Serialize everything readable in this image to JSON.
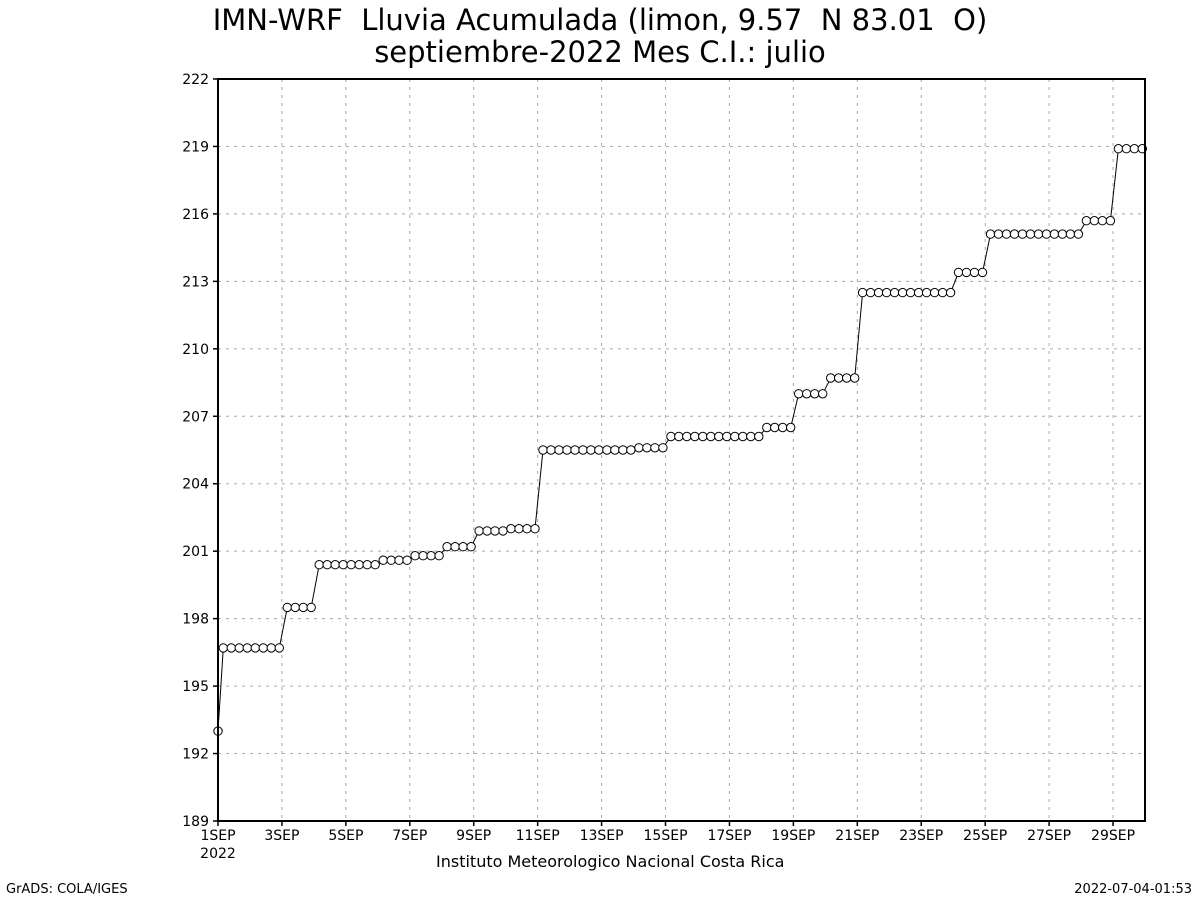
{
  "title_line1": "IMN-WRF  Lluvia Acumulada (limon, 9.57  N 83.01  O)",
  "title_line2": "septiembre-2022 Mes C.I.: julio",
  "footer": {
    "credit": "Instituto Meteorologico Nacional Costa Rica",
    "grads": "GrADS: COLA/IGES",
    "timestamp": "2022-07-04-01:53"
  },
  "chart_data": {
    "type": "line",
    "title": "IMN-WRF  Lluvia Acumulada (limon, 9.57  N 83.01  O)",
    "subtitle": "septiembre-2022 Mes C.I.: julio",
    "xlabel": "",
    "ylabel": "",
    "x_range_days": [
      1,
      30
    ],
    "x_year_label": "2022",
    "ylim": [
      189,
      222
    ],
    "yticks": [
      189,
      192,
      195,
      198,
      201,
      204,
      207,
      210,
      213,
      216,
      219,
      222
    ],
    "xticks": [
      {
        "day": 1,
        "label": "1SEP"
      },
      {
        "day": 3,
        "label": "3SEP"
      },
      {
        "day": 5,
        "label": "5SEP"
      },
      {
        "day": 7,
        "label": "7SEP"
      },
      {
        "day": 9,
        "label": "9SEP"
      },
      {
        "day": 11,
        "label": "11SEP"
      },
      {
        "day": 13,
        "label": "13SEP"
      },
      {
        "day": 15,
        "label": "15SEP"
      },
      {
        "day": 17,
        "label": "17SEP"
      },
      {
        "day": 19,
        "label": "19SEP"
      },
      {
        "day": 21,
        "label": "21SEP"
      },
      {
        "day": 23,
        "label": "23SEP"
      },
      {
        "day": 25,
        "label": "25SEP"
      },
      {
        "day": 27,
        "label": "27SEP"
      },
      {
        "day": 29,
        "label": "29SEP"
      }
    ],
    "grid": true,
    "marker": "open-circle",
    "line_color": "#000000",
    "series": [
      {
        "x": [
          1.0,
          1.167,
          1.417,
          1.667,
          1.917,
          2.167,
          2.417,
          2.667,
          2.917,
          3.167,
          3.417,
          3.667,
          3.917,
          4.167,
          4.417,
          4.667,
          4.917,
          5.167,
          5.417,
          5.667,
          5.917,
          6.167,
          6.417,
          6.667,
          6.917,
          7.167,
          7.417,
          7.667,
          7.917,
          8.167,
          8.417,
          8.667,
          8.917,
          9.167,
          9.417,
          9.667,
          9.917,
          10.167,
          10.417,
          10.667,
          10.917,
          11.167,
          11.417,
          11.667,
          11.917,
          12.167,
          12.417,
          12.667,
          12.917,
          13.167,
          13.417,
          13.667,
          13.917,
          14.167,
          14.417,
          14.667,
          14.917,
          15.167,
          15.417,
          15.667,
          15.917,
          16.167,
          16.417,
          16.667,
          16.917,
          17.167,
          17.417,
          17.667,
          17.917,
          18.167,
          18.417,
          18.667,
          18.917,
          19.167,
          19.417,
          19.667,
          19.917,
          20.167,
          20.417,
          20.667,
          20.917,
          21.167,
          21.417,
          21.667,
          21.917,
          22.167,
          22.417,
          22.667,
          22.917,
          23.167,
          23.417,
          23.667,
          23.917,
          24.167,
          24.417,
          24.667,
          24.917,
          25.167,
          25.417,
          25.667,
          25.917,
          26.167,
          26.417,
          26.667,
          26.917,
          27.167,
          27.417,
          27.667,
          27.917,
          28.167,
          28.417,
          28.667,
          28.917,
          29.167,
          29.417,
          29.667,
          29.917
        ],
        "y": [
          193.0,
          196.7,
          196.7,
          196.7,
          196.7,
          196.7,
          196.7,
          196.7,
          196.7,
          198.5,
          198.5,
          198.5,
          198.5,
          200.4,
          200.4,
          200.4,
          200.4,
          200.4,
          200.4,
          200.4,
          200.4,
          200.6,
          200.6,
          200.6,
          200.6,
          200.8,
          200.8,
          200.8,
          200.8,
          201.2,
          201.2,
          201.2,
          201.2,
          201.9,
          201.9,
          201.9,
          201.9,
          202.0,
          202.0,
          202.0,
          202.0,
          205.5,
          205.5,
          205.5,
          205.5,
          205.5,
          205.5,
          205.5,
          205.5,
          205.5,
          205.5,
          205.5,
          205.5,
          205.6,
          205.6,
          205.6,
          205.6,
          206.1,
          206.1,
          206.1,
          206.1,
          206.1,
          206.1,
          206.1,
          206.1,
          206.1,
          206.1,
          206.1,
          206.1,
          206.5,
          206.5,
          206.5,
          206.5,
          208.0,
          208.0,
          208.0,
          208.0,
          208.7,
          208.7,
          208.7,
          208.7,
          212.5,
          212.5,
          212.5,
          212.5,
          212.5,
          212.5,
          212.5,
          212.5,
          212.5,
          212.5,
          212.5,
          212.5,
          213.4,
          213.4,
          213.4,
          213.4,
          215.1,
          215.1,
          215.1,
          215.1,
          215.1,
          215.1,
          215.1,
          215.1,
          215.1,
          215.1,
          215.1,
          215.1,
          215.7,
          215.7,
          215.7,
          215.7,
          218.9,
          218.9,
          218.9,
          218.9
        ]
      }
    ]
  }
}
